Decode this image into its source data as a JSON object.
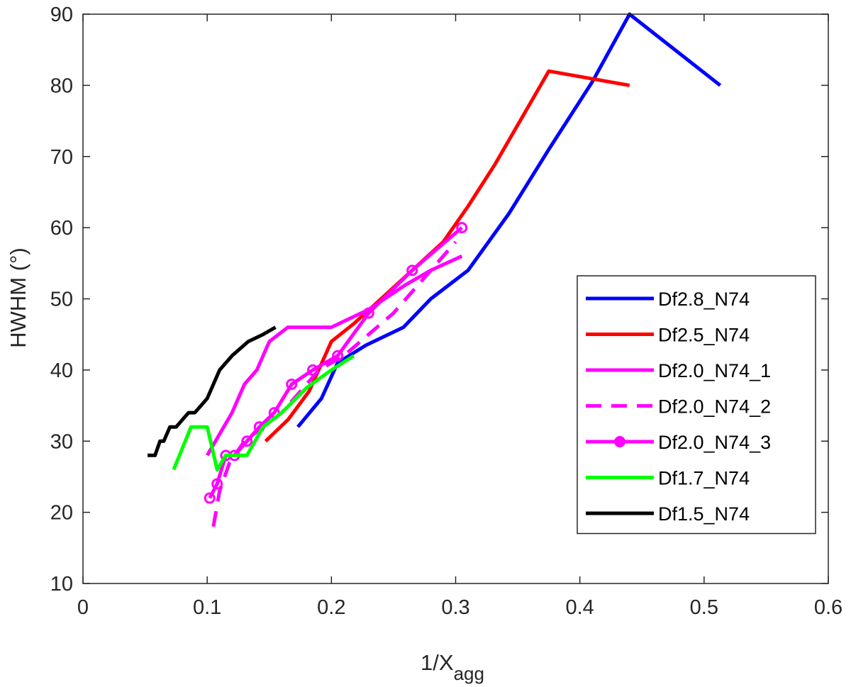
{
  "chart_data": {
    "type": "line",
    "title": "",
    "xlabel": "1/X",
    "xlabel_subscript": "agg",
    "ylabel": "HWHM (°)",
    "xlim": [
      0,
      0.6
    ],
    "ylim": [
      10,
      90
    ],
    "xticks": [
      0,
      0.1,
      0.2,
      0.3,
      0.4,
      0.5,
      0.6
    ],
    "xtick_labels": [
      "0",
      "0.1",
      "0.2",
      "0.3",
      "0.4",
      "0.5",
      "0.6"
    ],
    "yticks": [
      10,
      20,
      30,
      40,
      50,
      60,
      70,
      80,
      90
    ],
    "ytick_labels": [
      "10",
      "20",
      "30",
      "40",
      "50",
      "60",
      "70",
      "80",
      "90"
    ],
    "legend_position": "right",
    "series": [
      {
        "name": "Df2.8_N74",
        "color": "#0000ff",
        "style": "solid",
        "marker": "none",
        "x": [
          0.173,
          0.192,
          0.205,
          0.228,
          0.258,
          0.28,
          0.31,
          0.343,
          0.375,
          0.41,
          0.44,
          0.513
        ],
        "y": [
          32,
          36,
          41,
          43.5,
          46,
          50,
          54,
          62,
          71,
          80.5,
          90,
          80
        ]
      },
      {
        "name": "Df2.5_N74",
        "color": "#ff0000",
        "style": "solid",
        "marker": "none",
        "x": [
          0.147,
          0.165,
          0.182,
          0.2,
          0.218,
          0.24,
          0.265,
          0.29,
          0.31,
          0.332,
          0.375,
          0.44
        ],
        "y": [
          30,
          33,
          37,
          44,
          46.5,
          50,
          54,
          58,
          63,
          69,
          82,
          80
        ]
      },
      {
        "name": "Df2.0_N74_1",
        "color": "#ff00ff",
        "style": "solid",
        "marker": "none",
        "x": [
          0.1,
          0.11,
          0.12,
          0.13,
          0.14,
          0.15,
          0.165,
          0.185,
          0.2,
          0.23,
          0.26,
          0.28,
          0.305
        ],
        "y": [
          28,
          31,
          34,
          38,
          40,
          44,
          46,
          46,
          46,
          48.5,
          52,
          54,
          56
        ]
      },
      {
        "name": "Df2.0_N74_2",
        "color": "#ff00ff",
        "style": "dashed",
        "marker": "none",
        "x": [
          0.105,
          0.11,
          0.118,
          0.13,
          0.145,
          0.16,
          0.175,
          0.19,
          0.21,
          0.23,
          0.25,
          0.27,
          0.3
        ],
        "y": [
          18,
          23,
          27,
          30,
          32,
          34,
          37,
          40,
          42,
          45,
          48,
          52,
          58
        ]
      },
      {
        "name": "Df2.0_N74_3",
        "color": "#ff00ff",
        "style": "solid",
        "marker": "circle",
        "x": [
          0.102,
          0.108,
          0.115,
          0.122,
          0.132,
          0.142,
          0.154,
          0.168,
          0.185,
          0.205,
          0.23,
          0.265,
          0.305
        ],
        "y": [
          22,
          24,
          28,
          28,
          30,
          32,
          34,
          38,
          40,
          42,
          48,
          54,
          60
        ]
      },
      {
        "name": "Df1.7_N74",
        "color": "#00ff00",
        "style": "solid",
        "marker": "none",
        "x": [
          0.073,
          0.087,
          0.1,
          0.108,
          0.115,
          0.12,
          0.132,
          0.145,
          0.16,
          0.18,
          0.2,
          0.218
        ],
        "y": [
          26,
          32,
          32,
          26,
          28,
          28,
          28,
          32,
          34,
          37.5,
          40,
          42
        ]
      },
      {
        "name": "Df1.5_N74",
        "color": "#000000",
        "style": "solid",
        "marker": "none",
        "x": [
          0.052,
          0.058,
          0.062,
          0.065,
          0.07,
          0.075,
          0.08,
          0.085,
          0.09,
          0.095,
          0.1,
          0.11,
          0.12,
          0.133,
          0.145,
          0.155
        ],
        "y": [
          28,
          28,
          30,
          30,
          32,
          32,
          33,
          34,
          34,
          35,
          36,
          40,
          42,
          44,
          45,
          46
        ]
      }
    ]
  }
}
